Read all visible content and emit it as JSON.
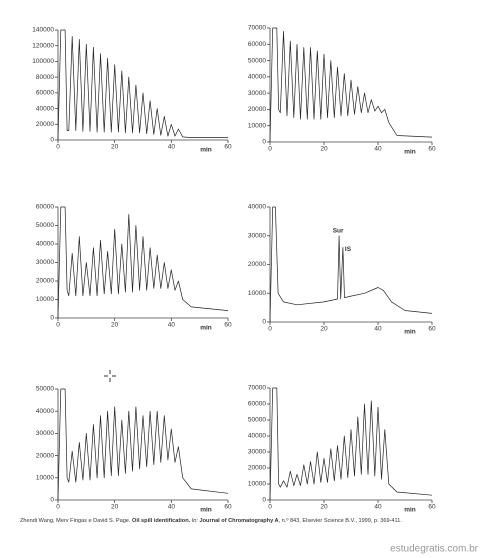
{
  "chart_data": [
    {
      "type": "line",
      "x_label": "min",
      "xlim": [
        0,
        60
      ],
      "xticks": [
        0,
        20,
        40,
        60
      ],
      "ylim": [
        0,
        140000
      ],
      "yticks": [
        0,
        20000,
        40000,
        60000,
        80000,
        100000,
        120000,
        140000
      ],
      "color": "#222222",
      "x": [
        0,
        1,
        2.5,
        3.2,
        3.8,
        5,
        6.3,
        7.5,
        8.8,
        10,
        11.3,
        12.5,
        13.8,
        15,
        16.3,
        17.5,
        18.8,
        20,
        21.3,
        22.5,
        23.8,
        25,
        26.3,
        27.5,
        28.8,
        30,
        31.3,
        32.5,
        33.8,
        35,
        36.3,
        37.5,
        38.8,
        40,
        41.3,
        42.5,
        44,
        47,
        60
      ],
      "values": [
        0,
        140000,
        140000,
        12000,
        12000,
        132000,
        12000,
        128000,
        11000,
        122000,
        11000,
        118000,
        10000,
        110000,
        10000,
        104000,
        10000,
        96000,
        10000,
        88000,
        9000,
        80000,
        9000,
        70000,
        9000,
        60000,
        8000,
        50000,
        7000,
        40000,
        6000,
        30000,
        5000,
        20000,
        5000,
        14000,
        4000,
        3000,
        3000
      ]
    },
    {
      "type": "line",
      "x_label": "min",
      "xlim": [
        0,
        60
      ],
      "xticks": [
        0,
        20,
        40,
        60
      ],
      "ylim": [
        0,
        70000
      ],
      "yticks": [
        0,
        10000,
        20000,
        30000,
        40000,
        50000,
        60000,
        70000
      ],
      "color": "#222222",
      "x": [
        0,
        1,
        2.5,
        3.2,
        3.8,
        5,
        6.3,
        7.5,
        8.8,
        10,
        11.3,
        12.5,
        13.8,
        15,
        16.3,
        17.5,
        18.8,
        20,
        21.3,
        22.5,
        23.8,
        25,
        26.3,
        27.5,
        28.8,
        30,
        31.3,
        32.5,
        33.8,
        35,
        36.3,
        37.5,
        38.8,
        40,
        41.3,
        42.5,
        44,
        47,
        60
      ],
      "values": [
        0,
        70000,
        70000,
        20000,
        18000,
        68000,
        16000,
        62000,
        15000,
        60000,
        14000,
        58000,
        14000,
        58000,
        14000,
        56000,
        14000,
        54000,
        15000,
        50000,
        15000,
        46000,
        16000,
        42000,
        16000,
        38000,
        17000,
        34000,
        18000,
        30000,
        18000,
        26000,
        19000,
        22000,
        18000,
        20000,
        12000,
        4000,
        3000
      ]
    },
    {
      "type": "line",
      "x_label": "min",
      "xlim": [
        0,
        60
      ],
      "xticks": [
        0,
        20,
        40,
        60
      ],
      "ylim": [
        0,
        60000
      ],
      "yticks": [
        0,
        10000,
        20000,
        30000,
        40000,
        50000,
        60000
      ],
      "color": "#222222",
      "x": [
        0,
        1,
        2.5,
        3.2,
        3.8,
        5,
        6.3,
        7.5,
        8.8,
        10,
        11.3,
        12.5,
        13.8,
        15,
        16.3,
        17.5,
        18.8,
        20,
        21.3,
        22.5,
        23.8,
        25,
        26.3,
        27.5,
        28.8,
        30,
        31.3,
        32.5,
        33.8,
        35,
        36.3,
        37.5,
        38.8,
        40,
        41.3,
        42.5,
        44,
        47,
        60
      ],
      "values": [
        0,
        60000,
        60000,
        15000,
        12000,
        35000,
        12000,
        44000,
        12000,
        30000,
        12000,
        38000,
        12000,
        42000,
        13000,
        36000,
        13000,
        48000,
        13000,
        40000,
        14000,
        56000,
        14000,
        50000,
        15000,
        44000,
        15000,
        38000,
        16000,
        34000,
        16000,
        30000,
        16000,
        26000,
        15000,
        20000,
        10000,
        6000,
        4000
      ]
    },
    {
      "type": "line",
      "x_label": "min",
      "xlim": [
        0,
        60
      ],
      "xticks": [
        0,
        20,
        40,
        60
      ],
      "ylim": [
        0,
        40000
      ],
      "yticks": [
        0,
        10000,
        20000,
        30000,
        40000
      ],
      "color": "#222222",
      "annotations": [
        "Sur",
        "IS"
      ],
      "x": [
        0,
        1,
        2,
        3,
        5,
        10,
        20,
        25,
        25.6,
        26.2,
        27,
        27.6,
        30,
        35,
        40,
        42,
        45,
        50,
        60
      ],
      "values": [
        0,
        40000,
        40000,
        10000,
        7000,
        6000,
        7000,
        8000,
        30000,
        8000,
        26000,
        8500,
        9000,
        10000,
        12000,
        11000,
        7000,
        4000,
        3000
      ]
    },
    {
      "type": "line",
      "x_label": "min",
      "xlim": [
        0,
        60
      ],
      "xticks": [
        0,
        20,
        40,
        60
      ],
      "ylim": [
        0,
        50000
      ],
      "yticks": [
        0,
        10000,
        20000,
        30000,
        40000,
        50000
      ],
      "color": "#222222",
      "x": [
        0,
        1,
        2.5,
        3.2,
        3.8,
        5,
        6.3,
        7.5,
        8.8,
        10,
        11.3,
        12.5,
        13.8,
        15,
        16.3,
        17.5,
        18.8,
        20,
        21.3,
        22.5,
        23.8,
        25,
        26.3,
        27.5,
        28.8,
        30,
        31.3,
        32.5,
        33.8,
        35,
        36.3,
        37.5,
        38.8,
        40,
        41.3,
        42.5,
        44,
        47,
        60
      ],
      "values": [
        0,
        50000,
        50000,
        10000,
        8000,
        22000,
        8000,
        26000,
        9000,
        30000,
        9000,
        34000,
        10000,
        38000,
        10000,
        40000,
        11000,
        42000,
        11000,
        36000,
        12000,
        40000,
        13000,
        42000,
        14000,
        38000,
        15000,
        40000,
        16000,
        40000,
        17000,
        38000,
        18000,
        32000,
        17000,
        24000,
        10000,
        5000,
        3000
      ]
    },
    {
      "type": "line",
      "x_label": "min",
      "xlim": [
        0,
        60
      ],
      "xticks": [
        0,
        20,
        40,
        60
      ],
      "ylim": [
        0,
        70000
      ],
      "yticks": [
        0,
        10000,
        20000,
        30000,
        40000,
        50000,
        60000,
        70000
      ],
      "color": "#222222",
      "x": [
        0,
        1,
        2.5,
        3.2,
        3.8,
        5,
        6.3,
        7.5,
        8.8,
        10,
        11.3,
        12.5,
        13.8,
        15,
        16.3,
        17.5,
        18.8,
        20,
        21.3,
        22.5,
        23.8,
        25,
        26.3,
        27.5,
        28.8,
        30,
        31.3,
        32.5,
        33.8,
        35,
        36.3,
        37.5,
        38.8,
        40,
        41.3,
        42.5,
        44,
        47,
        60
      ],
      "values": [
        0,
        70000,
        70000,
        10000,
        8000,
        12000,
        8000,
        18000,
        9000,
        16000,
        9000,
        22000,
        10000,
        24000,
        10000,
        30000,
        11000,
        26000,
        11000,
        32000,
        12000,
        34000,
        13000,
        40000,
        14000,
        44000,
        15000,
        52000,
        16000,
        60000,
        16000,
        62000,
        15000,
        58000,
        13000,
        44000,
        10000,
        5000,
        3000
      ]
    }
  ],
  "caption": {
    "authors": "Zhendi Wang, Merv Fingas e David S. Page.",
    "title": "Oil spill identification.",
    "in": "In:",
    "journal": "Journal of Chromatography A",
    "details": ", n.º 843, Elsevier Science B.V., 1999, p. 369-411."
  },
  "watermark": "estudegratis.com.br"
}
